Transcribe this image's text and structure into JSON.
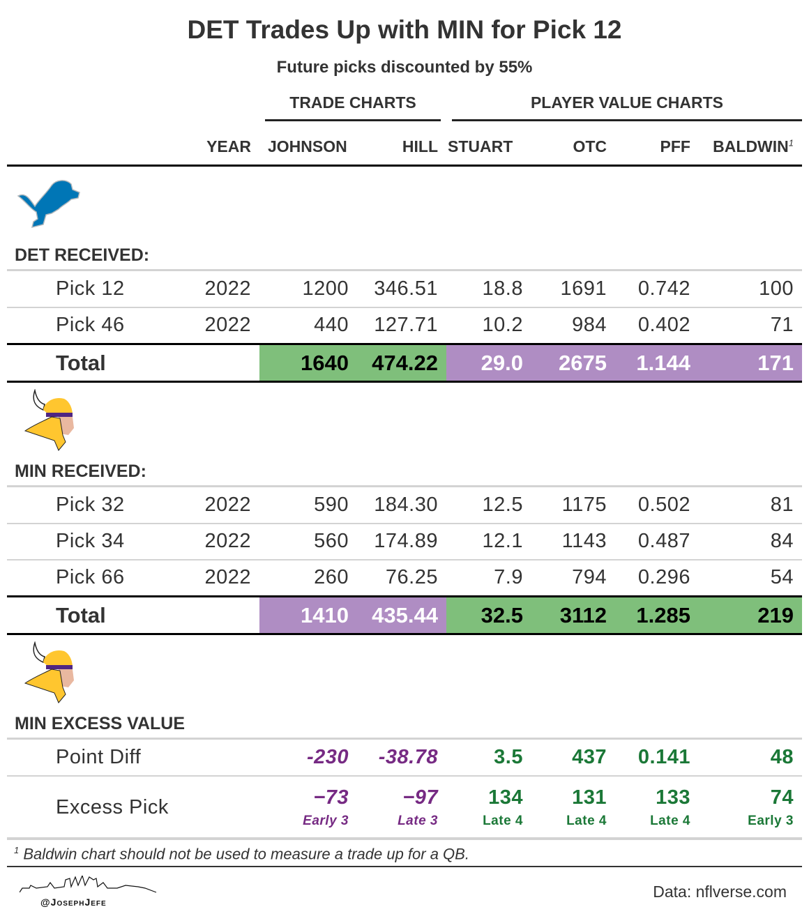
{
  "title": "DET Trades Up with MIN for Pick 12",
  "subtitle": "Future picks discounted by 55%",
  "spanners": {
    "trade": "TRADE CHARTS",
    "player": "PLAYER VALUE CHARTS"
  },
  "columns": [
    "",
    "YEAR",
    "JOHNSON",
    "HILL",
    "STUART",
    "OTC",
    "PFF",
    "BALDWIN"
  ],
  "footnote_mark": "1",
  "colors": {
    "green": "#7fbf7b",
    "purple": "#af8dc3",
    "green_text": "#1b7837",
    "purple_text": "#762a83",
    "lions": "#0076b6"
  },
  "groups": {
    "det": "DET RECEIVED:",
    "min": "MIN RECEIVED:",
    "excess": "MIN EXCESS VALUE"
  },
  "icons": {
    "det": "detroit-lions-logo",
    "min": "minnesota-vikings-logo"
  },
  "chart_data": {
    "type": "table",
    "title": "DET Trades Up with MIN for Pick 12",
    "det_received": [
      [
        "Pick 12",
        "2022",
        "1200",
        "346.51",
        "18.8",
        "1691",
        "0.742",
        "100"
      ],
      [
        "Pick 46",
        "2022",
        "440",
        "127.71",
        "10.2",
        "984",
        "0.402",
        "71"
      ]
    ],
    "det_total": [
      "Total",
      "",
      "1640",
      "474.22",
      "29.0",
      "2675",
      "1.144",
      "171"
    ],
    "min_received": [
      [
        "Pick 32",
        "2022",
        "590",
        "184.30",
        "12.5",
        "1175",
        "0.502",
        "81"
      ],
      [
        "Pick 34",
        "2022",
        "560",
        "174.89",
        "12.1",
        "1143",
        "0.487",
        "84"
      ],
      [
        "Pick 66",
        "2022",
        "260",
        "76.25",
        "7.9",
        "794",
        "0.296",
        "54"
      ]
    ],
    "min_total": [
      "Total",
      "",
      "1410",
      "435.44",
      "32.5",
      "3112",
      "1.285",
      "219"
    ],
    "point_diff": [
      "Point Diff",
      "",
      "-230",
      "-38.78",
      "3.5",
      "437",
      "0.141",
      "48"
    ],
    "excess_pick": [
      "Excess Pick",
      "",
      "−73",
      "−97",
      "134",
      "131",
      "133",
      "74"
    ],
    "excess_pick_label": [
      "",
      "",
      "Early 3",
      "Late 3",
      "Late 4",
      "Late 4",
      "Late 4",
      "Early 3"
    ]
  },
  "footnote": "Baldwin chart should not be used to measure a trade up for a QB.",
  "credit": "@JosephJefe",
  "source": "Data: nflverse.com"
}
